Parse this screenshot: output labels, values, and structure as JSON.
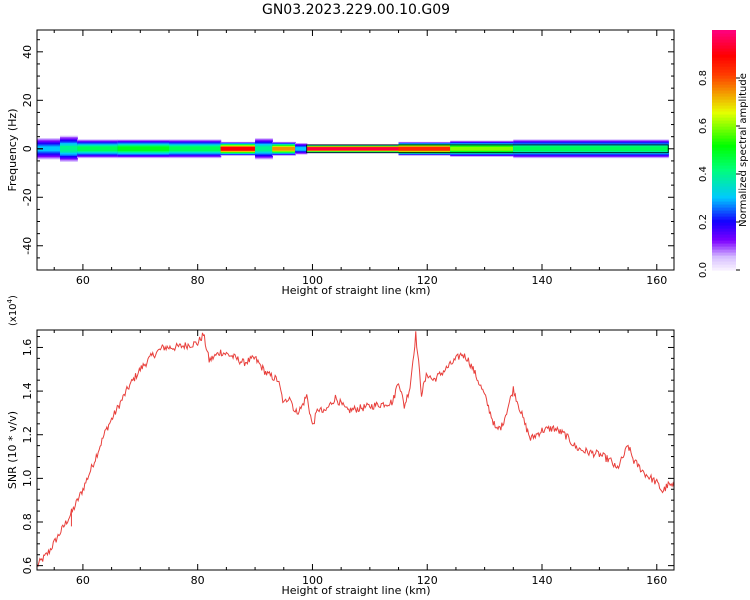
{
  "title": "GN03.2023.229.00.10.G09",
  "colors": {
    "snr_line": "#e8403c",
    "axis": "#000000"
  },
  "chart_data": [
    {
      "type": "heatmap",
      "title": "",
      "xlabel": "Height of straight line (km)",
      "ylabel": "Frequency (Hz)",
      "xlim": [
        52,
        163
      ],
      "ylim": [
        -50,
        49
      ],
      "xticks": [
        "60",
        "80",
        "100",
        "120",
        "140",
        "160"
      ],
      "yticks": [
        "40",
        "20",
        "0",
        "-20",
        "-40"
      ],
      "colorbar": {
        "label": "Normalized spectral amplitude",
        "range": [
          0,
          1
        ],
        "ticks": [
          "0.0",
          "0.2",
          "0.4",
          "0.6",
          "0.8"
        ],
        "colormap": "hsv-like: white/lavender (0) → purple → blue → cyan → green → yellow → red → magenta (1)"
      },
      "segments": [
        {
          "x": [
            52,
            56
          ],
          "half_width": 4.0,
          "peak": 0.3
        },
        {
          "x": [
            56,
            59
          ],
          "half_width": 5.0,
          "peak": 0.4
        },
        {
          "x": [
            59,
            66
          ],
          "half_width": 3.5,
          "peak": 0.45
        },
        {
          "x": [
            66,
            75
          ],
          "half_width": 3.5,
          "peak": 0.5
        },
        {
          "x": [
            75,
            84
          ],
          "half_width": 3.5,
          "peak": 0.45
        },
        {
          "x": [
            84,
            90
          ],
          "half_width": 2.5,
          "peak": 0.9
        },
        {
          "x": [
            90,
            93
          ],
          "half_width": 4.0,
          "peak": 0.4
        },
        {
          "x": [
            93,
            97
          ],
          "half_width": 2.5,
          "peak": 0.75
        },
        {
          "x": [
            97,
            99
          ],
          "half_width": 2.0,
          "peak": 0.3
        },
        {
          "x": [
            99,
            115
          ],
          "half_width": 1.5,
          "peak": 0.95
        },
        {
          "x": [
            115,
            124
          ],
          "half_width": 2.5,
          "peak": 0.85
        },
        {
          "x": [
            124,
            135
          ],
          "half_width": 3.0,
          "peak": 0.6
        },
        {
          "x": [
            135,
            162
          ],
          "half_width": 3.5,
          "peak": 0.45
        }
      ]
    },
    {
      "type": "line",
      "title": "",
      "xlabel": "Height of straight line (km)",
      "ylabel": "SNR (10 * v/v)",
      "y_multiplier": "(x10^4)",
      "xlim": [
        52,
        163
      ],
      "ylim": [
        0.58,
        1.68
      ],
      "xticks": [
        "60",
        "80",
        "100",
        "120",
        "140",
        "160"
      ],
      "yticks": [
        "0.6",
        "0.8",
        "1.0",
        "1.2",
        "1.4",
        "1.6"
      ],
      "series": [
        {
          "x": [
            52,
            54,
            56,
            58,
            60,
            62,
            64,
            66,
            68,
            70,
            72,
            74,
            76,
            78,
            80,
            81,
            82,
            84,
            86,
            88,
            90,
            92,
            94,
            95,
            96,
            97,
            98,
            99,
            100,
            101,
            102,
            104,
            106,
            108,
            110,
            112,
            114,
            115,
            116,
            117,
            118,
            119,
            120,
            121,
            122,
            124,
            126,
            127,
            128,
            130,
            131,
            132,
            133,
            134,
            135,
            136,
            137,
            138,
            140,
            142,
            144,
            146,
            148,
            150,
            152,
            153,
            154,
            155,
            156,
            158,
            160,
            161,
            162,
            163
          ],
          "y": [
            0.6,
            0.66,
            0.75,
            0.84,
            0.95,
            1.08,
            1.22,
            1.32,
            1.42,
            1.5,
            1.56,
            1.6,
            1.6,
            1.61,
            1.62,
            1.66,
            1.54,
            1.58,
            1.56,
            1.53,
            1.55,
            1.48,
            1.45,
            1.34,
            1.38,
            1.3,
            1.32,
            1.38,
            1.24,
            1.32,
            1.3,
            1.37,
            1.31,
            1.32,
            1.33,
            1.34,
            1.35,
            1.45,
            1.33,
            1.42,
            1.66,
            1.39,
            1.48,
            1.45,
            1.47,
            1.52,
            1.57,
            1.55,
            1.5,
            1.38,
            1.3,
            1.22,
            1.24,
            1.32,
            1.41,
            1.33,
            1.25,
            1.18,
            1.22,
            1.23,
            1.2,
            1.14,
            1.12,
            1.11,
            1.08,
            1.04,
            1.09,
            1.15,
            1.08,
            1.02,
            0.98,
            0.94,
            0.97,
            0.96
          ]
        }
      ]
    }
  ]
}
